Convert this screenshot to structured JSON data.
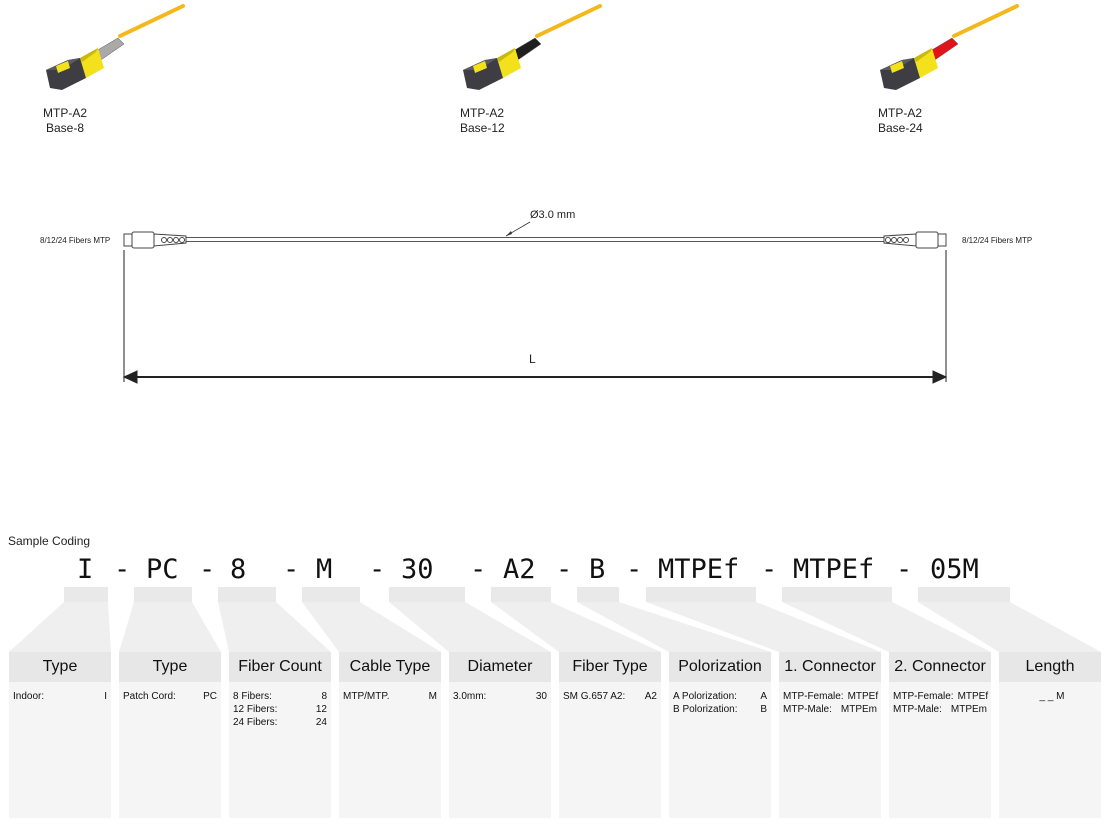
{
  "products": [
    {
      "line1": "MTP-A2",
      "line2": "Base-8",
      "boot": "gray"
    },
    {
      "line1": "MTP-A2",
      "line2": "Base-12",
      "boot": "black"
    },
    {
      "line1": "MTP-A2",
      "line2": "Base-24",
      "boot": "red"
    }
  ],
  "colors": {
    "connector_yellow": "#f2e11b",
    "connector_body": "#3d3d43",
    "fiber_yellow": "#f5b81b",
    "boot_gray": "#a9aaa8",
    "boot_black": "#1f1f1f",
    "boot_red": "#e2141b",
    "panel": "#f4f5f4",
    "panel_head": "#e6e7e6"
  },
  "diagram": {
    "left_label": "8/12/24 Fibers MTP",
    "right_label": "8/12/24 Fibers MTP",
    "diameter_label": "Ø3.0 mm",
    "length_label": "L"
  },
  "sample": {
    "title": "Sample Coding",
    "codes": [
      "I",
      "-",
      "PC",
      "-",
      "8",
      "-",
      "M",
      "-",
      "30",
      "-",
      "A2",
      "-",
      "B",
      "-",
      "MTPEf",
      "-",
      "MTPEf",
      "-",
      "05M"
    ]
  },
  "columns": [
    {
      "header": "Type",
      "rows": [
        [
          "Indoor:",
          "I"
        ]
      ]
    },
    {
      "header": "Type",
      "rows": [
        [
          "Patch Cord:",
          "PC"
        ]
      ]
    },
    {
      "header": "Fiber Count",
      "rows": [
        [
          "8 Fibers:",
          "8"
        ],
        [
          "12 Fibers:",
          "12"
        ],
        [
          "24 Fibers:",
          "24"
        ]
      ]
    },
    {
      "header": "Cable Type",
      "rows": [
        [
          "MTP/MTP.",
          "M"
        ]
      ]
    },
    {
      "header": "Diameter",
      "rows": [
        [
          "3.0mm:",
          "30"
        ]
      ]
    },
    {
      "header": "Fiber Type",
      "rows": [
        [
          "SM G.657 A2:",
          "A2"
        ]
      ]
    },
    {
      "header": "Polorization",
      "rows": [
        [
          "A Polorization:",
          "A"
        ],
        [
          "B Polorization:",
          "B"
        ]
      ]
    },
    {
      "header": "1. Connector",
      "rows": [
        [
          "MTP-Female:",
          "MTPEf"
        ],
        [
          "MTP-Male:",
          "MTPEm"
        ]
      ]
    },
    {
      "header": "2. Connector",
      "rows": [
        [
          "MTP-Female:",
          "MTPEf"
        ],
        [
          "MTP-Male:",
          "MTPEm"
        ]
      ]
    },
    {
      "header": "Length",
      "rows": [
        [
          "",
          "_ _ M"
        ]
      ]
    }
  ]
}
